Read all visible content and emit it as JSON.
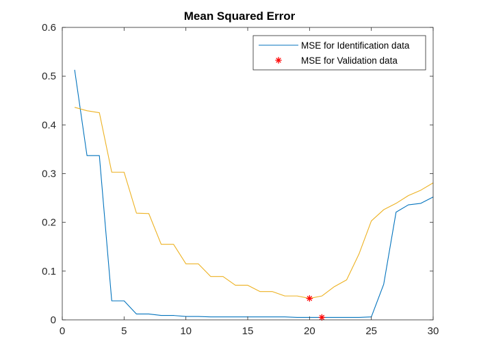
{
  "chart_data": {
    "type": "line",
    "title": "Mean Squared Error",
    "xlabel": "",
    "ylabel": "",
    "xlim": [
      0,
      30
    ],
    "ylim": [
      0,
      0.6
    ],
    "xticks": [
      0,
      5,
      10,
      15,
      20,
      25,
      30
    ],
    "yticks": [
      0,
      0.1,
      0.2,
      0.3,
      0.4,
      0.5,
      0.6
    ],
    "grid": false,
    "legend_position": "top-right",
    "x": [
      1,
      2,
      3,
      4,
      5,
      6,
      7,
      8,
      9,
      10,
      11,
      12,
      13,
      14,
      15,
      16,
      17,
      18,
      19,
      20,
      21,
      22,
      23,
      24,
      25,
      26,
      27,
      28,
      29,
      30
    ],
    "series": [
      {
        "name": "MSE for Identification data",
        "color": "#0072BD",
        "style": "line",
        "values": [
          0.513,
          0.337,
          0.337,
          0.039,
          0.039,
          0.012,
          0.012,
          0.009,
          0.009,
          0.007,
          0.007,
          0.006,
          0.006,
          0.006,
          0.006,
          0.006,
          0.006,
          0.006,
          0.005,
          0.005,
          0.005,
          0.005,
          0.005,
          0.005,
          0.006,
          0.073,
          0.221,
          0.236,
          0.239,
          0.252
        ]
      },
      {
        "name": "",
        "color": "#EDB120",
        "style": "line",
        "values": [
          0.436,
          0.429,
          0.425,
          0.303,
          0.303,
          0.219,
          0.218,
          0.155,
          0.155,
          0.115,
          0.115,
          0.089,
          0.089,
          0.071,
          0.071,
          0.058,
          0.058,
          0.049,
          0.049,
          0.044,
          0.049,
          0.068,
          0.082,
          0.135,
          0.203,
          0.226,
          0.239,
          0.255,
          0.266,
          0.281
        ]
      },
      {
        "name": "MSE for Validation data",
        "color": "#FF0000",
        "style": "marker",
        "marker": "asterisk",
        "points": [
          {
            "x": 20,
            "y": 0.044
          },
          {
            "x": 21,
            "y": 0.005
          }
        ]
      }
    ]
  }
}
